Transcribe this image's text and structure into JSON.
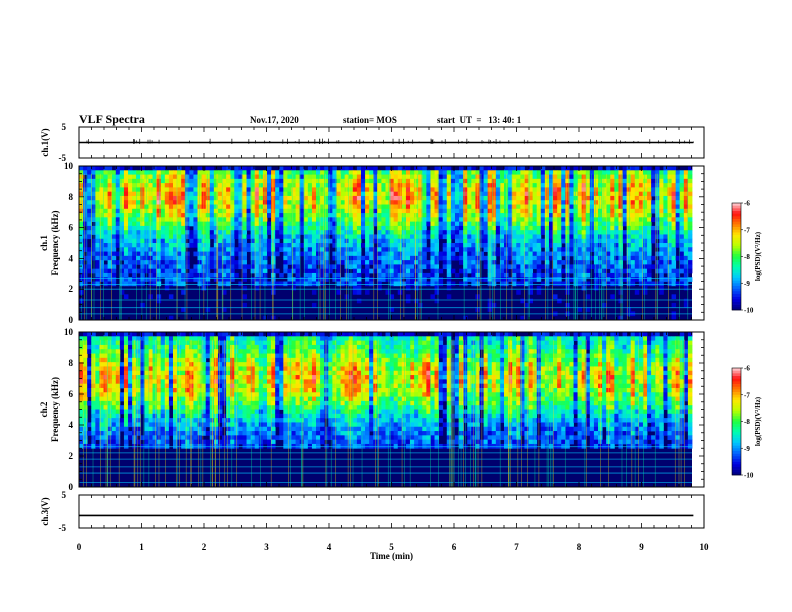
{
  "header": {
    "title": "VLF Spectra",
    "date": "Nov.17, 2020",
    "station": "station= MOS",
    "start": "start  UT  =   13: 40: 1"
  },
  "chart_data": [
    {
      "type": "line",
      "name": "ch1-waveform",
      "ylabel": "ch.1(V)",
      "ylim": [
        -5,
        5
      ],
      "yticks": [
        "5",
        "-5"
      ],
      "x": [
        0,
        9.83
      ],
      "values": [
        0,
        0
      ],
      "color": "#000000"
    },
    {
      "type": "heatmap",
      "name": "ch1-spectrogram",
      "ylabel": "ch.1\nFrequency (kHz)",
      "ylabel_line1": "ch.1",
      "ylabel_line2": "Frequency (kHz)",
      "ylim": [
        0,
        10
      ],
      "yticks": [
        "0",
        "2",
        "4",
        "6",
        "8",
        "10"
      ],
      "xlim": [
        0,
        9.83
      ],
      "intense_band_khz": [
        6.5,
        9.2
      ],
      "colorbar": {
        "label": "log(PSD)(V²/Hz)",
        "range": [
          -10,
          -6
        ],
        "ticks": [
          "-6",
          "-7",
          "-8",
          "-9",
          "-10"
        ]
      }
    },
    {
      "type": "heatmap",
      "name": "ch2-spectrogram",
      "ylabel": "ch.2\nFrequency (kHz)",
      "ylabel_line1": "ch.2",
      "ylabel_line2": "Frequency (kHz)",
      "ylim": [
        0,
        10
      ],
      "yticks": [
        "0",
        "2",
        "4",
        "6",
        "8",
        "10"
      ],
      "xlim": [
        0,
        9.83
      ],
      "intense_band_khz": [
        5.5,
        8.2
      ],
      "colorbar": {
        "label": "log(PSD)(V²/Hz)",
        "range": [
          -10,
          -6
        ],
        "ticks": [
          "-6",
          "-7",
          "-8",
          "-9",
          "-10"
        ]
      }
    },
    {
      "type": "line",
      "name": "ch3-waveform",
      "ylabel": "ch.3(V)",
      "ylim": [
        -5,
        5
      ],
      "yticks": [
        "5",
        "-5"
      ],
      "x": [
        0,
        9.83
      ],
      "values": [
        -1.2,
        -1.2
      ],
      "color": "#000000"
    }
  ],
  "xaxis": {
    "label": "Time (min)",
    "range": [
      0,
      10
    ],
    "ticks": [
      "0",
      "1",
      "2",
      "3",
      "4",
      "5",
      "6",
      "7",
      "8",
      "9",
      "10"
    ]
  },
  "colors": {
    "background": "#ffffff",
    "frame": "#000000",
    "palette": [
      "#00007a",
      "#0000e0",
      "#0060ff",
      "#00c8ff",
      "#00ffb0",
      "#20ff40",
      "#b8ff00",
      "#ffe800",
      "#ff7a00",
      "#ff1010",
      "#ffd8dc"
    ]
  }
}
